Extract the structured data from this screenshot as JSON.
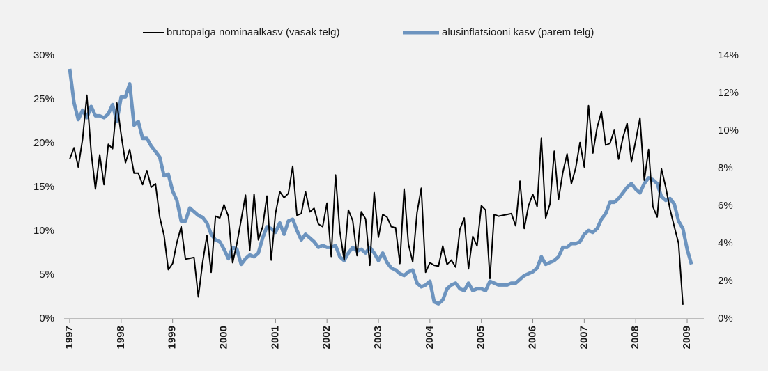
{
  "chart_data": {
    "type": "line",
    "categories": [
      "1997",
      null,
      null,
      null,
      null,
      null,
      null,
      null,
      null,
      null,
      null,
      null,
      "1998",
      null,
      null,
      null,
      null,
      null,
      null,
      null,
      null,
      null,
      null,
      null,
      "1999",
      null,
      null,
      null,
      null,
      null,
      null,
      null,
      null,
      null,
      null,
      null,
      "2000",
      null,
      null,
      null,
      null,
      null,
      null,
      null,
      null,
      null,
      null,
      null,
      "2001",
      null,
      null,
      null,
      null,
      null,
      null,
      null,
      null,
      null,
      null,
      null,
      "2002",
      null,
      null,
      null,
      null,
      null,
      null,
      null,
      null,
      null,
      null,
      null,
      "2003",
      null,
      null,
      null,
      null,
      null,
      null,
      null,
      null,
      null,
      null,
      null,
      "2004",
      null,
      null,
      null,
      null,
      null,
      null,
      null,
      null,
      null,
      null,
      null,
      "2005",
      null,
      null,
      null,
      null,
      null,
      null,
      null,
      null,
      null,
      null,
      null,
      "2006",
      null,
      null,
      null,
      null,
      null,
      null,
      null,
      null,
      null,
      null,
      null,
      "2007",
      null,
      null,
      null,
      null,
      null,
      null,
      null,
      null,
      null,
      null,
      null,
      "2008",
      null,
      null,
      null,
      null,
      null,
      null,
      null,
      null,
      null,
      null,
      null,
      "2009",
      null
    ],
    "series": [
      {
        "name": "brutopalga nominaalkasv (vasak telg)",
        "color": "#000000",
        "axis": "y",
        "values": [
          18.2,
          19.5,
          17.3,
          20.5,
          25.5,
          19,
          14.8,
          18.7,
          15.3,
          19.9,
          19.4,
          24.6,
          21,
          17.8,
          19.3,
          16.6,
          16.6,
          15.3,
          16.9,
          15,
          15.4,
          11.6,
          9.5,
          5.6,
          6.3,
          8.7,
          10.5,
          6.8,
          6.9,
          7,
          2.5,
          6.4,
          9.5,
          5.3,
          11.7,
          11.5,
          13,
          11.7,
          6.4,
          8.6,
          11.3,
          14.1,
          7.8,
          14.2,
          9,
          10.5,
          14,
          6.7,
          12,
          14.5,
          13.8,
          14.3,
          17.4,
          11.8,
          12,
          14.5,
          12.2,
          12.6,
          10.8,
          10.5,
          13.2,
          7.1,
          16.4,
          10,
          6.7,
          12.4,
          11.2,
          7.2,
          12.2,
          11.4,
          6.1,
          14.4,
          9.3,
          11.9,
          11.6,
          10.5,
          10.4,
          6.3,
          14.8,
          8.5,
          6.5,
          12.1,
          14.9,
          5.3,
          6.4,
          6.1,
          6,
          8.3,
          6.2,
          6.7,
          5.9,
          10.2,
          11.5,
          5.7,
          9.4,
          8.3,
          12.9,
          12.4,
          4.6,
          11.9,
          11.7,
          11.8,
          11.9,
          12,
          10.6,
          15.7,
          10.3,
          12.9,
          14.2,
          12.8,
          20.6,
          11.5,
          13.1,
          19.1,
          13.6,
          16.7,
          18.8,
          15.4,
          17.2,
          20.1,
          17.3,
          24.3,
          18.9,
          21.8,
          23.6,
          19.8,
          20,
          21.5,
          18.2,
          20.6,
          22.3,
          17.9,
          20.3,
          22.9,
          15.8,
          19.3,
          12.8,
          11.6,
          17.1,
          15,
          12.5,
          10.5,
          8.6,
          1.6,
          null,
          null
        ]
      },
      {
        "name": "alusinflatsiooni kasv (parem telg)",
        "color": "#6d94bf",
        "axis": "y2",
        "values": [
          13.3,
          11.5,
          10.6,
          11.1,
          10.7,
          11.3,
          10.8,
          10.8,
          10.7,
          10.9,
          11.4,
          10.5,
          11.8,
          11.8,
          12.5,
          10.3,
          10.5,
          9.6,
          9.6,
          9.2,
          8.9,
          8.6,
          7.6,
          7.7,
          6.8,
          6.3,
          5.2,
          5.2,
          5.9,
          5.7,
          5.5,
          5.4,
          5.1,
          4.5,
          4.2,
          4.1,
          3.7,
          3.2,
          3.8,
          3.7,
          2.9,
          3.2,
          3.4,
          3.3,
          3.5,
          4.3,
          4.9,
          4.8,
          4.6,
          5.1,
          4.5,
          5.2,
          5.3,
          4.7,
          4.2,
          4.5,
          4.3,
          4.1,
          3.8,
          3.9,
          3.8,
          3.8,
          3.9,
          3.3,
          3.1,
          3.5,
          3.8,
          3.6,
          3.7,
          3.5,
          3.8,
          3.5,
          3.1,
          3.5,
          3.0,
          2.7,
          2.6,
          2.4,
          2.3,
          2.5,
          2.6,
          1.9,
          1.7,
          1.8,
          2.0,
          0.9,
          0.8,
          1.0,
          1.6,
          1.8,
          1.9,
          1.6,
          1.5,
          1.9,
          1.5,
          1.6,
          1.6,
          1.5,
          2.0,
          1.9,
          1.8,
          1.8,
          1.8,
          1.9,
          1.9,
          2.1,
          2.3,
          2.4,
          2.5,
          2.7,
          3.3,
          2.9,
          3.0,
          3.1,
          3.3,
          3.8,
          3.8,
          4.0,
          4.0,
          4.1,
          4.5,
          4.7,
          4.6,
          4.8,
          5.3,
          5.6,
          6.2,
          6.2,
          6.4,
          6.7,
          7.0,
          7.2,
          6.9,
          6.7,
          7.2,
          7.5,
          7.4,
          7.2,
          6.5,
          6.3,
          6.4,
          6.1,
          5.2,
          4.8,
          3.7,
          2.9
        ]
      }
    ],
    "ylim": [
      0,
      30
    ],
    "yticks": [
      {
        "value": 0,
        "label": "0%"
      },
      {
        "value": 5,
        "label": "5%"
      },
      {
        "value": 10,
        "label": "10%"
      },
      {
        "value": 15,
        "label": "15%"
      },
      {
        "value": 20,
        "label": "20%"
      },
      {
        "value": 25,
        "label": "25%"
      },
      {
        "value": 30,
        "label": "30%"
      }
    ],
    "y2lim": [
      0,
      14
    ],
    "y2ticks": [
      {
        "value": 0,
        "label": "0%"
      },
      {
        "value": 2,
        "label": "2%"
      },
      {
        "value": 4,
        "label": "4%"
      },
      {
        "value": 6,
        "label": "6%"
      },
      {
        "value": 8,
        "label": "8%"
      },
      {
        "value": 10,
        "label": "10%"
      },
      {
        "value": 12,
        "label": "12%"
      },
      {
        "value": 14,
        "label": "14%"
      }
    ],
    "legend": "top"
  }
}
